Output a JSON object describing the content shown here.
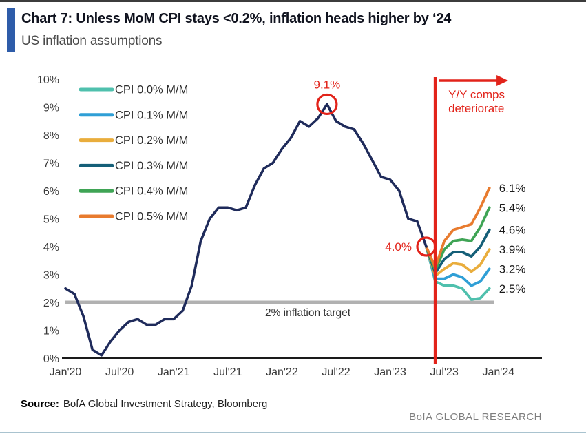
{
  "header": {
    "title": "Chart 7: Unless MoM CPI stays <0.2%, inflation heads higher by ‘24",
    "subtitle": "US inflation assumptions"
  },
  "footer": {
    "source_label": "Source:",
    "source_text": "BofA Global Investment Strategy, Bloomberg",
    "brand": "BofA GLOBAL RESEARCH"
  },
  "colors": {
    "accent_bar": "#2e5ca9",
    "actual_line": "#1f2b5b",
    "annotation_red": "#e2231a",
    "target_line_gray": "#b1b1b1",
    "axis": "#1a1a1a",
    "bottom_rule": "#a9c3cf"
  },
  "chart_data": {
    "type": "line",
    "title": "US inflation assumptions",
    "xlabel": "",
    "ylabel": "",
    "ylim": [
      0,
      10
    ],
    "grid": "off",
    "legend_position": "upper-left",
    "y_ticks": [
      {
        "value": 0,
        "label": "0%"
      },
      {
        "value": 1,
        "label": "1%"
      },
      {
        "value": 2,
        "label": "2%"
      },
      {
        "value": 3,
        "label": "3%"
      },
      {
        "value": 4,
        "label": "4%"
      },
      {
        "value": 5,
        "label": "5%"
      },
      {
        "value": 6,
        "label": "6%"
      },
      {
        "value": 7,
        "label": "7%"
      },
      {
        "value": 8,
        "label": "8%"
      },
      {
        "value": 9,
        "label": "9%"
      },
      {
        "value": 10,
        "label": "10%"
      }
    ],
    "x_ticks": [
      {
        "month": 0,
        "label": "Jan'20"
      },
      {
        "month": 6,
        "label": "Jul'20"
      },
      {
        "month": 12,
        "label": "Jan'21"
      },
      {
        "month": 18,
        "label": "Jul'21"
      },
      {
        "month": 24,
        "label": "Jan'22"
      },
      {
        "month": 30,
        "label": "Jul'22"
      },
      {
        "month": 36,
        "label": "Jan'23"
      },
      {
        "month": 42,
        "label": "Jul'23"
      },
      {
        "month": 48,
        "label": "Jan'24"
      }
    ],
    "actual": {
      "color": "#1f2b5b",
      "start_month": 0,
      "start_label": "Jan'20",
      "values": [
        2.5,
        2.3,
        1.5,
        0.3,
        0.1,
        0.6,
        1.0,
        1.3,
        1.4,
        1.2,
        1.2,
        1.4,
        1.4,
        1.7,
        2.6,
        4.2,
        5.0,
        5.4,
        5.4,
        5.3,
        5.4,
        6.2,
        6.8,
        7.0,
        7.5,
        7.9,
        8.5,
        8.3,
        8.6,
        9.1,
        8.5,
        8.3,
        8.2,
        7.7,
        7.1,
        6.5,
        6.4,
        6.0,
        5.0,
        4.9,
        4.0
      ]
    },
    "scenarios": [
      {
        "label": "CPI 0.0% M/M",
        "color": "#4fc0ad",
        "start_month": 40,
        "end_label": "2.5%",
        "values": [
          4.0,
          2.75,
          2.6,
          2.6,
          2.5,
          2.1,
          2.15,
          2.5
        ]
      },
      {
        "label": "CPI 0.1% M/M",
        "color": "#2f9fd6",
        "start_month": 40,
        "end_label": "3.2%",
        "values": [
          4.0,
          2.85,
          2.85,
          3.0,
          2.9,
          2.6,
          2.75,
          3.2
        ]
      },
      {
        "label": "CPI 0.2% M/M",
        "color": "#e9ad3c",
        "start_month": 40,
        "end_label": "3.9%",
        "values": [
          4.0,
          2.95,
          3.2,
          3.4,
          3.35,
          3.1,
          3.35,
          3.9
        ]
      },
      {
        "label": "CPI 0.3% M/M",
        "color": "#155f78",
        "start_month": 40,
        "end_label": "4.6%",
        "values": [
          4.0,
          3.05,
          3.55,
          3.8,
          3.8,
          3.65,
          4.0,
          4.6
        ]
      },
      {
        "label": "CPI 0.4% M/M",
        "color": "#3fa455",
        "start_month": 40,
        "end_label": "5.4%",
        "values": [
          4.0,
          3.15,
          3.9,
          4.2,
          4.25,
          4.2,
          4.7,
          5.4
        ]
      },
      {
        "label": "CPI 0.5% M/M",
        "color": "#e87b2e",
        "start_month": 40,
        "end_label": "6.1%",
        "values": [
          4.0,
          3.25,
          4.2,
          4.6,
          4.7,
          4.8,
          5.4,
          6.1
        ]
      }
    ],
    "target_line": {
      "value": 2,
      "label": "2% inflation target",
      "end_month": 47.5
    },
    "annotations": {
      "peak": {
        "month": 29,
        "value": 9.1,
        "label": "9.1%"
      },
      "latest": {
        "month": 40,
        "value": 4.0,
        "label": "4.0%"
      },
      "vline_month": 41,
      "note_lines": [
        "Y/Y comps",
        "deteriorate"
      ]
    }
  }
}
